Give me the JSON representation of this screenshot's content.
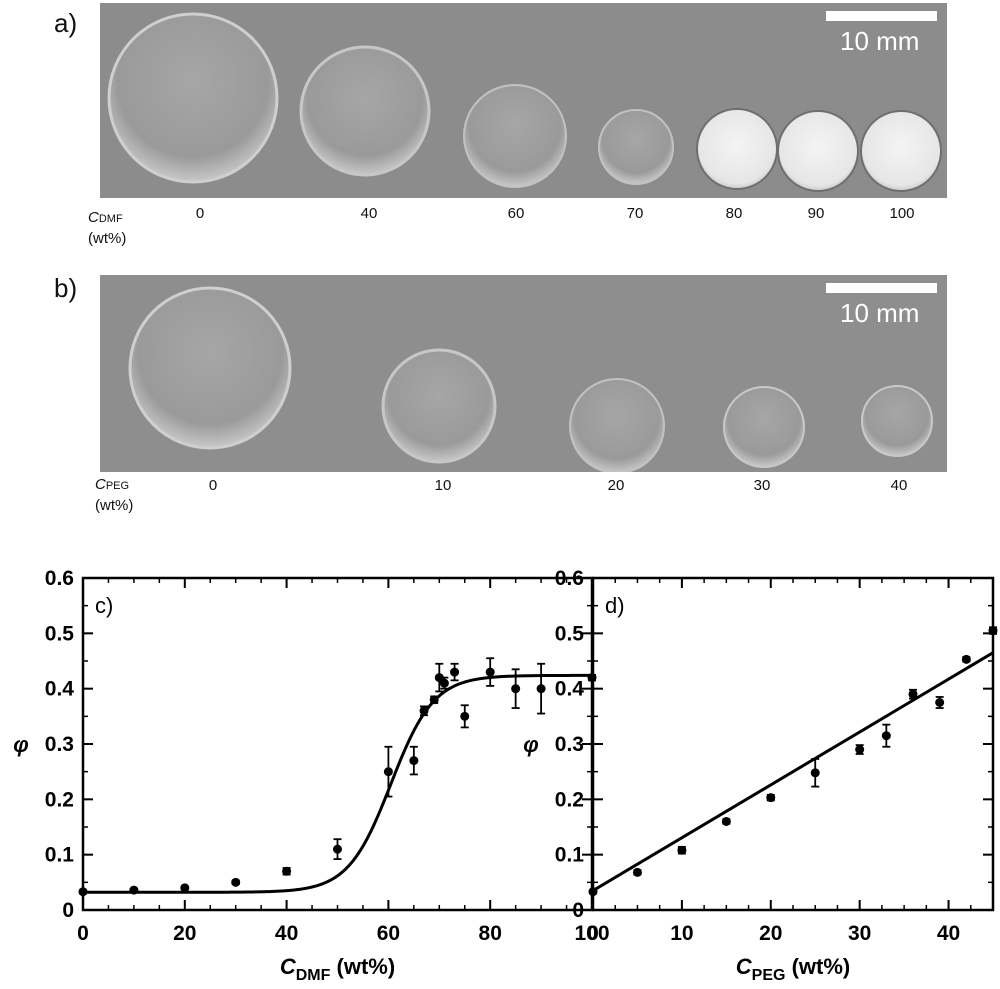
{
  "photo_a": {
    "label": "a)",
    "scale_bar": "10 mm",
    "row_label_main": "C",
    "row_label_sub": "DMF",
    "row_label_unit": "(wt%)",
    "concentrations": [
      "0",
      "40",
      "60",
      "70",
      "80",
      "90",
      "100"
    ]
  },
  "photo_b": {
    "label": "b)",
    "scale_bar": "10 mm",
    "row_label_main": "C",
    "row_label_sub": "PEG",
    "row_label_unit": "(wt%)",
    "concentrations": [
      "0",
      "10",
      "20",
      "30",
      "40"
    ]
  },
  "chart_data": [
    {
      "type": "scatter",
      "panel_label": "c)",
      "xlabel_main": "C",
      "xlabel_sub": "DMF",
      "xlabel_unit": "(wt%)",
      "ylabel": "φ",
      "xlim": [
        0,
        100
      ],
      "ylim": [
        0,
        0.6
      ],
      "xticks": [
        0,
        20,
        40,
        60,
        80,
        100
      ],
      "yticks": [
        0,
        0.1,
        0.2,
        0.3,
        0.4,
        0.5,
        0.6
      ],
      "grid": false,
      "legend": "none",
      "points": [
        {
          "x": 0,
          "y": 0.033,
          "err": 0.003
        },
        {
          "x": 10,
          "y": 0.036,
          "err": 0.002
        },
        {
          "x": 20,
          "y": 0.04,
          "err": 0.002
        },
        {
          "x": 30,
          "y": 0.05,
          "err": 0.003
        },
        {
          "x": 40,
          "y": 0.07,
          "err": 0.006
        },
        {
          "x": 50,
          "y": 0.11,
          "err": 0.018
        },
        {
          "x": 60,
          "y": 0.25,
          "err": 0.045
        },
        {
          "x": 65,
          "y": 0.27,
          "err": 0.025
        },
        {
          "x": 67,
          "y": 0.36,
          "err": 0.008
        },
        {
          "x": 69,
          "y": 0.38,
          "err": 0.006
        },
        {
          "x": 70,
          "y": 0.42,
          "err": 0.025
        },
        {
          "x": 71,
          "y": 0.41,
          "err": 0.01
        },
        {
          "x": 73,
          "y": 0.43,
          "err": 0.015
        },
        {
          "x": 75,
          "y": 0.35,
          "err": 0.02
        },
        {
          "x": 80,
          "y": 0.43,
          "err": 0.025
        },
        {
          "x": 85,
          "y": 0.4,
          "err": 0.035
        },
        {
          "x": 90,
          "y": 0.4,
          "err": 0.045
        },
        {
          "x": 100,
          "y": 0.42,
          "err": 0.005
        }
      ],
      "fit": {
        "type": "sigmoid",
        "min": 0.032,
        "max": 0.424,
        "x0": 60.5,
        "width": 4.2
      }
    },
    {
      "type": "scatter",
      "panel_label": "d)",
      "xlabel_main": "C",
      "xlabel_sub": "PEG",
      "xlabel_unit": "(wt%)",
      "ylabel": "φ",
      "xlim": [
        0,
        45
      ],
      "ylim": [
        0,
        0.6
      ],
      "xticks": [
        0,
        10,
        20,
        30,
        40
      ],
      "yticks": [
        0,
        0.1,
        0.2,
        0.3,
        0.4,
        0.5,
        0.6
      ],
      "grid": false,
      "legend": "none",
      "points": [
        {
          "x": 0,
          "y": 0.033,
          "err": 0.003
        },
        {
          "x": 5,
          "y": 0.068,
          "err": 0.004
        },
        {
          "x": 10,
          "y": 0.108,
          "err": 0.006
        },
        {
          "x": 15,
          "y": 0.16,
          "err": 0.004
        },
        {
          "x": 20,
          "y": 0.203,
          "err": 0.005
        },
        {
          "x": 25,
          "y": 0.248,
          "err": 0.025
        },
        {
          "x": 30,
          "y": 0.29,
          "err": 0.008
        },
        {
          "x": 33,
          "y": 0.315,
          "err": 0.02
        },
        {
          "x": 36,
          "y": 0.39,
          "err": 0.008
        },
        {
          "x": 39,
          "y": 0.375,
          "err": 0.01
        },
        {
          "x": 42,
          "y": 0.453,
          "err": 0.004
        },
        {
          "x": 45,
          "y": 0.505,
          "err": 0.006
        }
      ],
      "fit": {
        "type": "linear",
        "x": [
          0,
          45
        ],
        "y": [
          0.035,
          0.465
        ]
      }
    }
  ]
}
